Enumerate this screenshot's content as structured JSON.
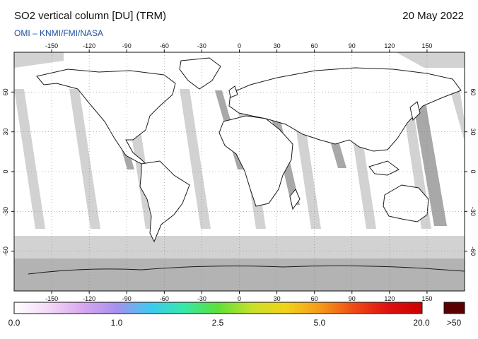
{
  "header": {
    "title": "SO2 vertical column [DU] (TRM)",
    "date": "20 May 2022",
    "credit": "OMI  –  KNMI/FMI/NASA"
  },
  "map": {
    "projection": "equirectangular",
    "lon_range": [
      -180,
      180
    ],
    "lat_range": [
      -90,
      90
    ],
    "lon_ticks": [
      -150,
      -120,
      -90,
      -60,
      -30,
      0,
      30,
      60,
      90,
      120,
      150
    ],
    "lat_ticks": [
      60,
      30,
      0,
      -30,
      -60
    ],
    "colors": {
      "ocean": "#ffffff",
      "no_data": "#d2d2d2",
      "overlap": "#a8a8a8",
      "coast": "#1a1a1a",
      "grid": "#888888"
    }
  },
  "colorbar": {
    "labels": [
      "0.0",
      "1.0",
      "2.5",
      "5.0",
      "20.0",
      ">50"
    ],
    "colors": [
      "#ffffff",
      "#f3d9f7",
      "#d9a8f0",
      "#a890ee",
      "#3ec9f2",
      "#36e8a8",
      "#5de03a",
      "#c8e02a",
      "#f2d21a",
      "#f59a1a",
      "#ee4a14",
      "#e01010",
      "#cc0000"
    ],
    "over_color": "#5a0000"
  }
}
